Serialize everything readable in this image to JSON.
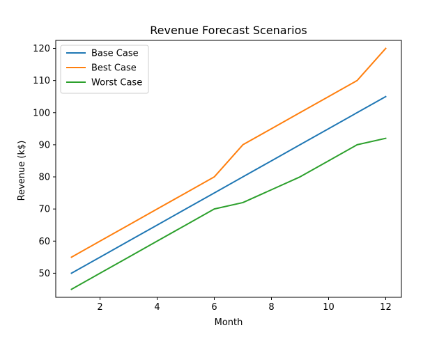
{
  "chart_data": {
    "type": "line",
    "title": "Revenue Forecast Scenarios",
    "xlabel": "Month",
    "ylabel": "Revenue (k$)",
    "xlim": [
      0.45,
      12.55
    ],
    "ylim": [
      42.5,
      122.5
    ],
    "xticks": [
      2,
      4,
      6,
      8,
      10,
      12
    ],
    "yticks": [
      50,
      60,
      70,
      80,
      90,
      100,
      110,
      120
    ],
    "grid": false,
    "legend_position": "upper left",
    "x": [
      1,
      2,
      3,
      4,
      5,
      6,
      7,
      8,
      9,
      10,
      11,
      12
    ],
    "series": [
      {
        "name": "Base Case",
        "color": "#1f77b4",
        "values": [
          50,
          55,
          60,
          65,
          70,
          75,
          80,
          85,
          90,
          95,
          100,
          105
        ]
      },
      {
        "name": "Best Case",
        "color": "#ff7f0e",
        "values": [
          55,
          60,
          65,
          70,
          75,
          80,
          90,
          95,
          100,
          105,
          110,
          120
        ]
      },
      {
        "name": "Worst Case",
        "color": "#2ca02c",
        "values": [
          45,
          50,
          55,
          60,
          65,
          70,
          72,
          76,
          80,
          85,
          90,
          92
        ]
      }
    ]
  }
}
